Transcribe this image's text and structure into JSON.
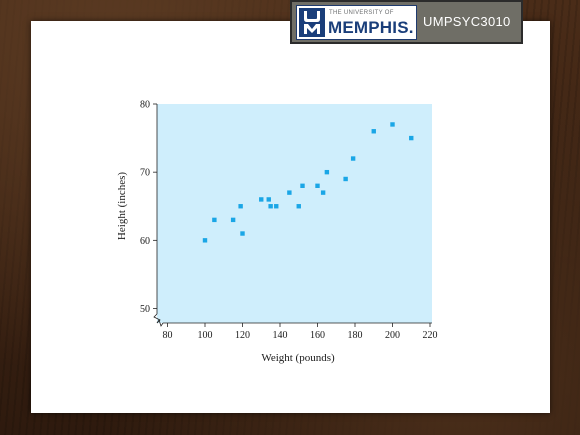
{
  "header": {
    "logo_small": "THE UNIVERSITY OF",
    "logo_main": "MEMPHIS.",
    "course_code": "UMPSYC3010"
  },
  "colors": {
    "plot_background": "#cfeefc",
    "point": "#1aa6e6",
    "banner": "#6f6e66",
    "logo_blue": "#1a3e7a"
  },
  "chart_data": {
    "type": "scatter",
    "xlabel": "Weight (pounds)",
    "ylabel": "Height (inches)",
    "xlim": [
      72,
      220
    ],
    "ylim": [
      47,
      80
    ],
    "xticks": [
      80,
      100,
      120,
      140,
      160,
      180,
      200,
      220
    ],
    "yticks": [
      50,
      60,
      70,
      80
    ],
    "axis_break": true,
    "grid": false,
    "points": [
      {
        "x": 100,
        "y": 60
      },
      {
        "x": 105,
        "y": 63
      },
      {
        "x": 115,
        "y": 63
      },
      {
        "x": 119,
        "y": 65
      },
      {
        "x": 120,
        "y": 61
      },
      {
        "x": 130,
        "y": 66
      },
      {
        "x": 134,
        "y": 66
      },
      {
        "x": 135,
        "y": 65
      },
      {
        "x": 138,
        "y": 65
      },
      {
        "x": 145,
        "y": 67
      },
      {
        "x": 150,
        "y": 65
      },
      {
        "x": 152,
        "y": 68
      },
      {
        "x": 160,
        "y": 68
      },
      {
        "x": 163,
        "y": 67
      },
      {
        "x": 165,
        "y": 70
      },
      {
        "x": 175,
        "y": 69
      },
      {
        "x": 179,
        "y": 72
      },
      {
        "x": 190,
        "y": 76
      },
      {
        "x": 200,
        "y": 77
      },
      {
        "x": 210,
        "y": 75
      }
    ]
  }
}
